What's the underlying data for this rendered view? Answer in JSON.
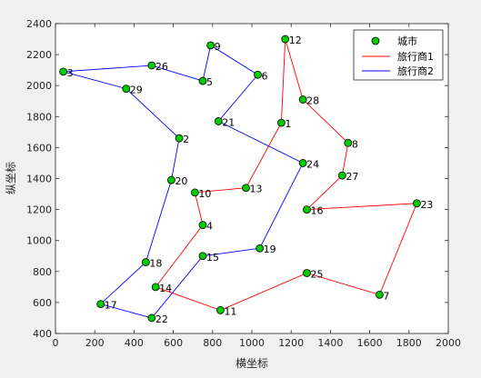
{
  "chart_data": {
    "type": "line",
    "title": "",
    "xlabel": "横坐标",
    "ylabel": "纵坐标",
    "xlim": [
      0,
      2000
    ],
    "ylim": [
      400,
      2400
    ],
    "xticks": [
      0,
      200,
      400,
      600,
      800,
      1000,
      1200,
      1400,
      1600,
      1800,
      2000
    ],
    "yticks": [
      400,
      600,
      800,
      1000,
      1200,
      1400,
      1600,
      1800,
      2000,
      2200,
      2400
    ],
    "grid": false,
    "legend_position": "top-right",
    "cities": [
      {
        "id": "1",
        "x": 1150,
        "y": 1760
      },
      {
        "id": "2",
        "x": 630,
        "y": 1660
      },
      {
        "id": "3",
        "x": 40,
        "y": 2090
      },
      {
        "id": "4",
        "x": 750,
        "y": 1100
      },
      {
        "id": "5",
        "x": 750,
        "y": 2030
      },
      {
        "id": "6",
        "x": 1030,
        "y": 2070
      },
      {
        "id": "7",
        "x": 1650,
        "y": 650
      },
      {
        "id": "8",
        "x": 1490,
        "y": 1630
      },
      {
        "id": "9",
        "x": 790,
        "y": 2260
      },
      {
        "id": "10",
        "x": 710,
        "y": 1310
      },
      {
        "id": "11",
        "x": 840,
        "y": 550
      },
      {
        "id": "12",
        "x": 1170,
        "y": 2300
      },
      {
        "id": "13",
        "x": 970,
        "y": 1340
      },
      {
        "id": "14",
        "x": 510,
        "y": 700
      },
      {
        "id": "15",
        "x": 750,
        "y": 900
      },
      {
        "id": "16",
        "x": 1280,
        "y": 1200
      },
      {
        "id": "17",
        "x": 230,
        "y": 590
      },
      {
        "id": "18",
        "x": 460,
        "y": 860
      },
      {
        "id": "19",
        "x": 1040,
        "y": 950
      },
      {
        "id": "20",
        "x": 590,
        "y": 1390
      },
      {
        "id": "21",
        "x": 830,
        "y": 1770
      },
      {
        "id": "22",
        "x": 490,
        "y": 500
      },
      {
        "id": "23",
        "x": 1840,
        "y": 1240
      },
      {
        "id": "24",
        "x": 1260,
        "y": 1500
      },
      {
        "id": "25",
        "x": 1280,
        "y": 790
      },
      {
        "id": "26",
        "x": 490,
        "y": 2130
      },
      {
        "id": "27",
        "x": 1460,
        "y": 1420
      },
      {
        "id": "28",
        "x": 1260,
        "y": 1910
      },
      {
        "id": "29",
        "x": 360,
        "y": 1980
      }
    ],
    "series": [
      {
        "name": "城市",
        "type": "scatter",
        "color": "#00cc00",
        "edge": "#000000"
      },
      {
        "name": "旅行商1",
        "type": "line",
        "color": "#ff0000",
        "route": [
          "4",
          "10",
          "13",
          "1",
          "12",
          "28",
          "8",
          "27",
          "16",
          "23",
          "7",
          "25",
          "11",
          "14",
          "4"
        ]
      },
      {
        "name": "旅行商2",
        "type": "line",
        "color": "#0000ff",
        "route": [
          "21",
          "24",
          "19",
          "15",
          "22",
          "17",
          "18",
          "20",
          "2",
          "29",
          "3",
          "26",
          "5",
          "9",
          "6",
          "21"
        ]
      }
    ]
  }
}
